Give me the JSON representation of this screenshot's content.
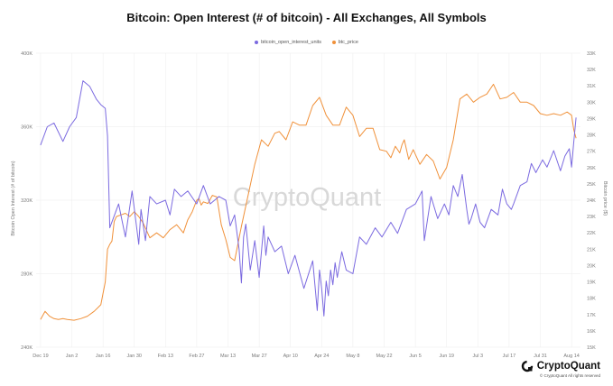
{
  "colors": {
    "open_interest": "#7b6ae0",
    "price": "#f0913a",
    "grid": "#ececec",
    "axis_text": "#7a7a7a",
    "watermark": "#d8d8d8"
  },
  "watermark": "CryptoQuant",
  "footer": {
    "brand": "CryptoQuant",
    "copyright": "© CryptoQuant All rights reserved",
    "logo_icon": "cryptoquant-logo-icon"
  },
  "chart_data": {
    "type": "line",
    "title": "Bitcoin: Open Interest (# of bitcoin) - All Exchanges, All Symbols",
    "xlabel": "",
    "ylabel_left": "Bitcoin Open Interest (# of bitcoin)",
    "ylabel_right": "Bitcoin price ($)",
    "legend_position": "top-center",
    "grid": true,
    "x_ticks": [
      "Dec 19",
      "Jan 2",
      "Jan 16",
      "Jan 30",
      "Feb 13",
      "Feb 27",
      "Mar 13",
      "Mar 27",
      "Apr 10",
      "Apr 24",
      "May 8",
      "May 22",
      "Jun 5",
      "Jun 19",
      "Jul 3",
      "Jul 17",
      "Jul 31",
      "Aug 14"
    ],
    "y_left_ticks": [
      "240K",
      "280K",
      "320K",
      "360K",
      "400K"
    ],
    "y_left_range": [
      240000,
      400000
    ],
    "y_right_ticks": [
      "15K",
      "16K",
      "17K",
      "18K",
      "19K",
      "20K",
      "21K",
      "22K",
      "23K",
      "24K",
      "25K",
      "26K",
      "27K",
      "28K",
      "29K",
      "30K",
      "31K",
      "32K",
      "33K"
    ],
    "y_right_range": [
      15000,
      33000
    ],
    "x_range_days": [
      -2,
      242
    ],
    "series": [
      {
        "name": "bitcoin_open_interest_units",
        "axis": "left",
        "x": [
          0,
          3,
          6,
          10,
          13,
          16,
          19,
          22,
          25,
          27,
          29,
          30,
          31,
          35,
          38,
          41,
          44,
          45,
          47,
          49,
          52,
          56,
          58,
          60,
          63,
          66,
          70,
          73,
          76,
          80,
          83,
          85,
          87,
          89,
          90,
          91,
          92,
          94,
          96,
          98,
          100,
          101,
          102,
          105,
          108,
          111,
          114,
          118,
          122,
          124,
          125,
          126,
          127,
          128,
          129,
          130,
          131,
          132,
          133,
          135,
          137,
          140,
          143,
          146,
          150,
          153,
          157,
          160,
          164,
          168,
          171,
          172,
          175,
          178,
          181,
          183,
          185,
          187,
          189,
          191,
          192,
          193,
          195,
          197,
          199,
          202,
          205,
          207,
          209,
          211,
          212,
          215,
          218,
          220,
          222,
          225,
          227,
          230,
          233,
          235,
          237,
          238,
          239,
          240
        ],
        "values": [
          350000,
          360000,
          362000,
          352000,
          360000,
          365000,
          385000,
          382000,
          375000,
          372000,
          370000,
          355000,
          305000,
          318000,
          300000,
          325000,
          296000,
          315000,
          298000,
          322000,
          318000,
          320000,
          312000,
          326000,
          322000,
          325000,
          318000,
          328000,
          318000,
          322000,
          320000,
          306000,
          312000,
          293000,
          275000,
          300000,
          307000,
          282000,
          298000,
          278000,
          306000,
          290000,
          300000,
          292000,
          295000,
          280000,
          290000,
          272000,
          287000,
          260000,
          282000,
          272000,
          257000,
          276000,
          268000,
          282000,
          274000,
          286000,
          278000,
          292000,
          282000,
          280000,
          300000,
          296000,
          305000,
          300000,
          308000,
          302000,
          315000,
          318000,
          325000,
          298000,
          322000,
          310000,
          318000,
          312000,
          328000,
          322000,
          334000,
          315000,
          307000,
          310000,
          318000,
          308000,
          305000,
          315000,
          312000,
          326000,
          318000,
          315000,
          318000,
          328000,
          330000,
          340000,
          335000,
          342000,
          338000,
          347000,
          336000,
          344000,
          348000,
          338000,
          352000,
          365000
        ]
      },
      {
        "name": "btc_price",
        "axis": "right",
        "x": [
          0,
          2,
          4,
          6,
          8,
          10,
          12,
          15,
          18,
          21,
          24,
          27,
          29,
          30,
          31,
          32,
          33,
          34,
          36,
          38,
          40,
          42,
          44,
          46,
          49,
          52,
          55,
          58,
          61,
          64,
          66,
          68,
          70,
          71,
          72,
          73,
          75,
          77,
          79,
          81,
          83,
          85,
          87,
          90,
          93,
          96,
          99,
          102,
          105,
          107,
          110,
          113,
          116,
          119,
          122,
          125,
          128,
          131,
          134,
          137,
          140,
          143,
          146,
          149,
          152,
          155,
          157,
          159,
          161,
          162,
          163,
          165,
          167,
          170,
          173,
          176,
          179,
          182,
          185,
          188,
          191,
          194,
          197,
          200,
          203,
          206,
          209,
          212,
          215,
          218,
          221,
          224,
          227,
          230,
          233,
          236,
          238,
          239,
          240
        ],
        "values": [
          16700,
          17200,
          16900,
          16750,
          16700,
          16750,
          16700,
          16650,
          16750,
          16900,
          17200,
          17600,
          19000,
          21000,
          21300,
          21500,
          22700,
          23000,
          23100,
          23200,
          23000,
          23300,
          23000,
          22600,
          21700,
          22000,
          21700,
          22200,
          22500,
          22000,
          22800,
          23300,
          24000,
          24100,
          23700,
          23900,
          23800,
          24300,
          24200,
          22500,
          21600,
          20500,
          20300,
          22400,
          24300,
          26200,
          27700,
          27300,
          28100,
          28200,
          27700,
          28800,
          28600,
          28600,
          29800,
          30300,
          29200,
          28600,
          28600,
          29700,
          29200,
          27900,
          28400,
          28400,
          27100,
          27000,
          26600,
          27300,
          26900,
          27400,
          27700,
          26500,
          27100,
          26200,
          26800,
          26400,
          25300,
          26000,
          27700,
          30200,
          30500,
          30000,
          30300,
          30500,
          31100,
          30200,
          30300,
          30600,
          30000,
          30000,
          29800,
          29300,
          29200,
          29300,
          29200,
          29400,
          29200,
          28300,
          27800
        ]
      }
    ]
  }
}
